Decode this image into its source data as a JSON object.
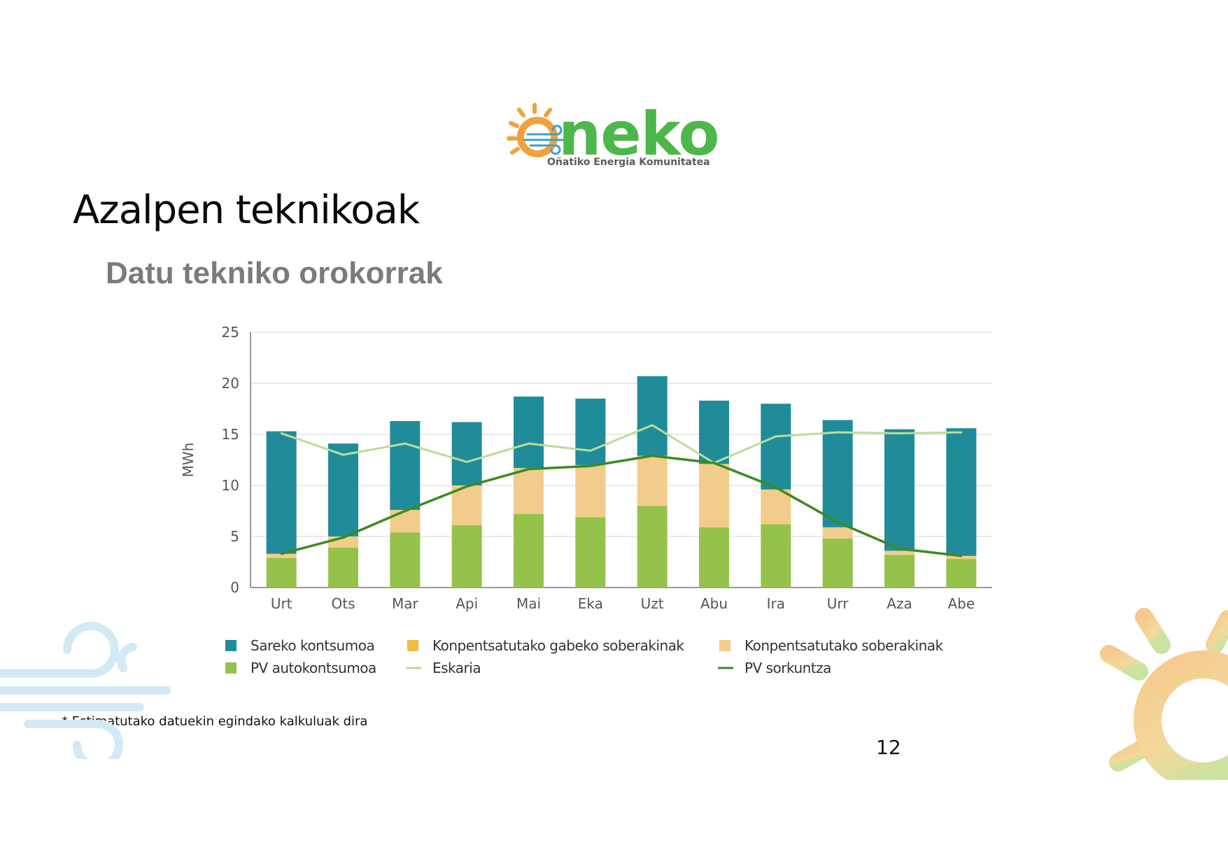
{
  "logo": {
    "wordmark": "Oneko",
    "tagline": "Oñatiko Energia Komunitatea",
    "colors": {
      "sun": "#f0a23a",
      "wind": "#3aa0c8",
      "text": "#4cb74a"
    }
  },
  "page": {
    "title": "Azalpen teknikoak",
    "subtitle": "Datu tekniko orokorrak",
    "footnote": "* Estimatutako datuekin egindako kalkuluak dira",
    "page_number": "12"
  },
  "chart_data": {
    "type": "bar",
    "stacked": true,
    "ylabel": "MWh",
    "xlabel": "",
    "ylim": [
      0,
      25
    ],
    "yticks": [
      0,
      5,
      10,
      15,
      20,
      25
    ],
    "grid": true,
    "legend_position": "bottom",
    "categories": [
      "Urt",
      "Ots",
      "Mar",
      "Api",
      "Mai",
      "Eka",
      "Uzt",
      "Abu",
      "Ira",
      "Urr",
      "Aza",
      "Abe"
    ],
    "series": [
      {
        "name": "PV autokontsumoa",
        "kind": "bar",
        "color": "#95c24a",
        "values": [
          2.9,
          3.9,
          5.4,
          6.1,
          7.2,
          6.9,
          8.0,
          5.9,
          6.2,
          4.8,
          3.2,
          2.8
        ]
      },
      {
        "name": "Konpentsatutako gabeko soberakinak",
        "kind": "bar",
        "color": "#f0bd3c",
        "values": [
          0,
          0,
          0,
          0,
          0,
          0,
          0,
          0,
          0,
          0,
          0,
          0
        ]
      },
      {
        "name": "Konpentsatutako soberakinak",
        "kind": "bar",
        "color": "#f2cc8a",
        "values": [
          0.4,
          1.1,
          2.2,
          3.9,
          4.5,
          5.1,
          4.9,
          6.2,
          3.4,
          1.1,
          0.4,
          0.3
        ]
      },
      {
        "name": "Sareko kontsumoa",
        "kind": "bar",
        "color": "#218c99",
        "values": [
          12.0,
          9.1,
          8.7,
          6.2,
          7.0,
          6.5,
          7.8,
          6.2,
          8.4,
          10.5,
          11.9,
          12.5
        ]
      },
      {
        "name": "Eskaria",
        "kind": "line",
        "color": "#bcdc9a",
        "values": [
          15.1,
          13.0,
          14.1,
          12.3,
          14.1,
          13.4,
          15.9,
          12.2,
          14.8,
          15.2,
          15.1,
          15.2
        ]
      },
      {
        "name": "PV sorkuntza",
        "kind": "line",
        "color": "#3c8a23",
        "values": [
          3.3,
          4.9,
          7.5,
          9.9,
          11.6,
          11.9,
          12.9,
          12.2,
          9.8,
          6.4,
          3.8,
          3.1
        ]
      }
    ],
    "legend_order": [
      "Sareko kontsumoa",
      "Konpentsatutako gabeko soberakinak",
      "Konpentsatutako soberakinak",
      "PV autokontsumoa",
      "Eskaria",
      "PV sorkuntza"
    ]
  }
}
